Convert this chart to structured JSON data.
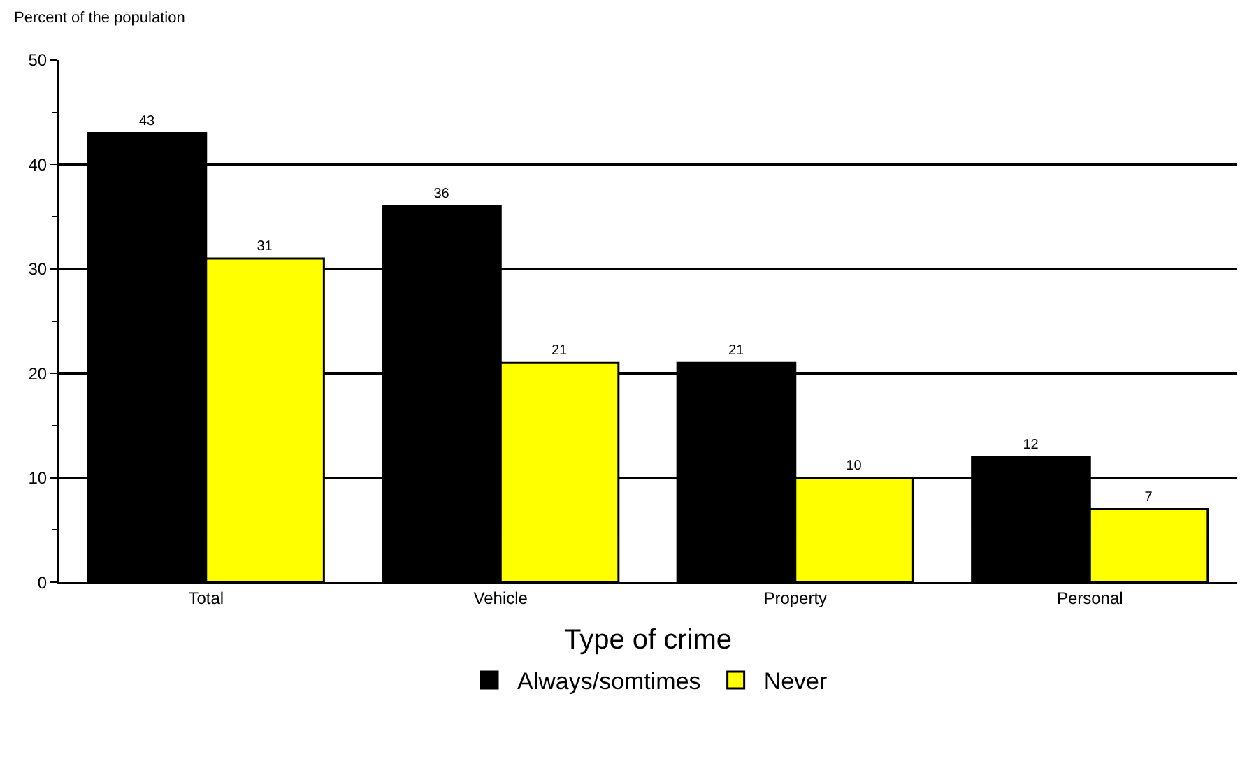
{
  "chart_data": {
    "type": "bar",
    "xlabel": "Type of crime",
    "ylabel": "Percent of the population",
    "categories": [
      "Total",
      "Vehicle",
      "Property",
      "Personal"
    ],
    "series": [
      {
        "name": "Always/somtimes",
        "color": "#000000",
        "values": [
          43,
          36,
          21,
          12
        ]
      },
      {
        "name": "Never",
        "color": "#ffff00",
        "values": [
          31,
          21,
          10,
          7
        ]
      }
    ],
    "ylim": [
      0,
      50
    ],
    "yticks": [
      0,
      {
        "value": 5,
        "label": null
      },
      10,
      {
        "value": 15,
        "label": null
      },
      20,
      {
        "value": 25,
        "label": null
      },
      30,
      {
        "value": 35,
        "label": null
      },
      40,
      {
        "value": 45,
        "label": null
      },
      50
    ],
    "grid": "y",
    "legend": "bottom",
    "data_labels": true
  }
}
